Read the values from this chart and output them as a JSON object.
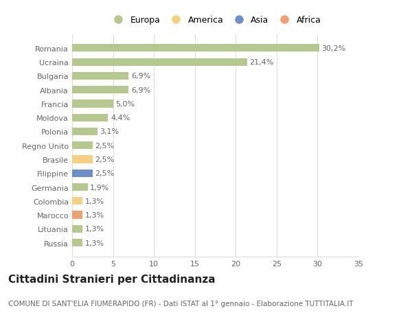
{
  "categories": [
    "Romania",
    "Ucraina",
    "Bulgaria",
    "Albania",
    "Francia",
    "Moldova",
    "Polonia",
    "Regno Unito",
    "Brasile",
    "Filippine",
    "Germania",
    "Colombia",
    "Marocco",
    "Lituania",
    "Russia"
  ],
  "values": [
    30.2,
    21.4,
    6.9,
    6.9,
    5.0,
    4.4,
    3.1,
    2.5,
    2.5,
    2.5,
    1.9,
    1.3,
    1.3,
    1.3,
    1.3
  ],
  "labels": [
    "30,2%",
    "21,4%",
    "6,9%",
    "6,9%",
    "5,0%",
    "4,4%",
    "3,1%",
    "2,5%",
    "2,5%",
    "2,5%",
    "1,9%",
    "1,3%",
    "1,3%",
    "1,3%",
    "1,3%"
  ],
  "bar_colors": [
    "#b5c98e",
    "#b5c98e",
    "#b5c98e",
    "#b5c98e",
    "#b5c98e",
    "#b5c98e",
    "#b5c98e",
    "#b5c98e",
    "#f5d080",
    "#6e8fc9",
    "#b5c98e",
    "#f5d080",
    "#f0a070",
    "#b5c98e",
    "#b5c98e"
  ],
  "legend": [
    {
      "label": "Europa",
      "color": "#b5c98e"
    },
    {
      "label": "America",
      "color": "#f5d080"
    },
    {
      "label": "Asia",
      "color": "#6e8fc9"
    },
    {
      "label": "Africa",
      "color": "#f0a070"
    }
  ],
  "title": "Cittadini Stranieri per Cittadinanza",
  "subtitle": "COMUNE DI SANT'ELIA FIUMERAPIDO (FR) - Dati ISTAT al 1° gennaio - Elaborazione TUTTITALIA.IT",
  "xlim": [
    0,
    35
  ],
  "xticks": [
    0,
    5,
    10,
    15,
    20,
    25,
    30,
    35
  ],
  "background_color": "#ffffff",
  "grid_color": "#dddddd",
  "bar_height": 0.55,
  "label_fontsize": 8,
  "tick_fontsize": 8,
  "title_fontsize": 11,
  "subtitle_fontsize": 7.5
}
